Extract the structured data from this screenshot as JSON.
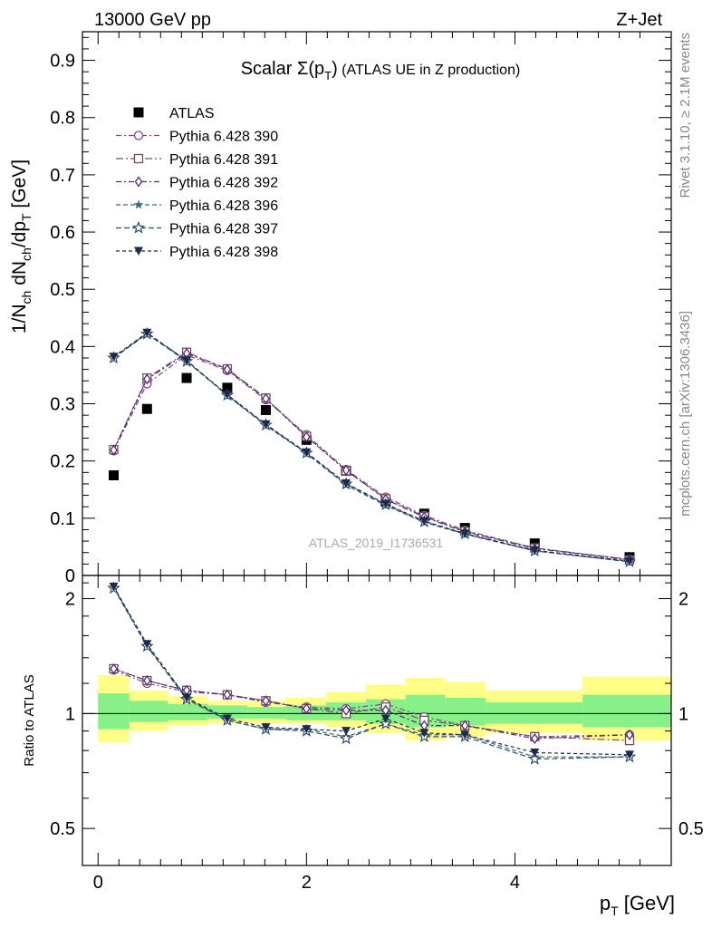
{
  "header": {
    "energy": "13000 GeV pp",
    "process": "Z+Jet"
  },
  "side": {
    "rivet": "Rivet 3.1.10, ≥ 2.1M events",
    "mcplots": "mcplots.cern.ch [arXiv:1306.3436]"
  },
  "watermark": "ATLAS_2019_I1736531",
  "chart_data": [
    {
      "type": "scatter",
      "title": "Scalar Σ(p_T) (ATLAS UE in Z production)",
      "title_main": "Scalar ",
      "title_sigma": "Σ(p",
      "title_sub": "T",
      "title_close": ")",
      "title_rest": " (ATLAS UE in Z production)",
      "ylabel": "1/N_ch dN_ch/dp_T [GeV]",
      "ylim": [
        0,
        0.95
      ],
      "xlim": [
        -0.15,
        5.5
      ],
      "yticks": [
        "0",
        "0.1",
        "0.2",
        "0.3",
        "0.4",
        "0.5",
        "0.6",
        "0.7",
        "0.8",
        "0.9"
      ],
      "ytick_values": [
        0,
        0.1,
        0.2,
        0.3,
        0.4,
        0.5,
        0.6,
        0.7,
        0.8,
        0.9
      ],
      "x": [
        0.15,
        0.47,
        0.85,
        1.24,
        1.61,
        2.0,
        2.38,
        2.76,
        3.13,
        3.52,
        4.19,
        5.1
      ],
      "series": [
        {
          "name": "ATLAS",
          "marker": "square",
          "color": "#000000",
          "values": [
            0.175,
            0.291,
            0.345,
            0.328,
            0.289,
            0.237,
            0.183,
            0.129,
            0.108,
            0.083,
            0.056,
            0.032
          ]
        },
        {
          "name": "Pythia 6.428 390",
          "marker": "circle",
          "color": "#7b4a8c",
          "values": [
            0.218,
            0.335,
            0.385,
            0.358,
            0.307,
            0.246,
            0.185,
            0.137,
            0.105,
            0.079,
            0.048,
            0.028
          ]
        },
        {
          "name": "Pythia 6.428 391",
          "marker": "square-open",
          "color": "#7b4b5c",
          "values": [
            0.22,
            0.345,
            0.39,
            0.361,
            0.31,
            0.243,
            0.183,
            0.134,
            0.103,
            0.077,
            0.048,
            0.027
          ]
        },
        {
          "name": "Pythia 6.428 392",
          "marker": "diamond",
          "color": "#4b2d7a",
          "values": [
            0.219,
            0.343,
            0.388,
            0.36,
            0.309,
            0.242,
            0.184,
            0.133,
            0.102,
            0.076,
            0.047,
            0.028
          ]
        },
        {
          "name": "Pythia 6.428 396",
          "marker": "star",
          "color": "#3d6b7a",
          "values": [
            0.381,
            0.423,
            0.376,
            0.314,
            0.262,
            0.213,
            0.158,
            0.122,
            0.093,
            0.072,
            0.043,
            0.024
          ]
        },
        {
          "name": "Pythia 6.428 397",
          "marker": "star-open",
          "color": "#2e4e6b",
          "values": [
            0.38,
            0.422,
            0.374,
            0.315,
            0.263,
            0.214,
            0.16,
            0.124,
            0.094,
            0.073,
            0.043,
            0.024
          ]
        },
        {
          "name": "Pythia 6.428 398",
          "marker": "triangle-down",
          "color": "#1c2a4d",
          "values": [
            0.382,
            0.424,
            0.375,
            0.316,
            0.264,
            0.215,
            0.161,
            0.125,
            0.095,
            0.073,
            0.044,
            0.025
          ]
        }
      ]
    },
    {
      "type": "scatter",
      "title": "Ratio to ATLAS",
      "ylabel": "Ratio to ATLAS",
      "xlabel": "p_T [GeV]",
      "xlabel_main": "p",
      "xlabel_sub": "T",
      "xlabel_unit": " [GeV]",
      "yscale": "log",
      "ylim": [
        0.4,
        2.3
      ],
      "xlim": [
        -0.15,
        5.5
      ],
      "yticks": [
        "0.5",
        "1",
        "2"
      ],
      "ytick_values": [
        0.5,
        1,
        2
      ],
      "xticks": [
        "0",
        "2",
        "4"
      ],
      "xtick_values": [
        0,
        2,
        4
      ],
      "bands": [
        {
          "x0": 0.0,
          "x1": 0.3,
          "yellow": [
            0.84,
            1.26
          ],
          "green": [
            0.91,
            1.13
          ]
        },
        {
          "x0": 0.3,
          "x1": 0.67,
          "yellow": [
            0.9,
            1.15
          ],
          "green": [
            0.95,
            1.08
          ]
        },
        {
          "x0": 0.67,
          "x1": 1.05,
          "yellow": [
            0.93,
            1.11
          ],
          "green": [
            0.96,
            1.06
          ]
        },
        {
          "x0": 1.05,
          "x1": 1.43,
          "yellow": [
            0.94,
            1.08
          ],
          "green": [
            0.97,
            1.05
          ]
        },
        {
          "x0": 1.43,
          "x1": 1.8,
          "yellow": [
            0.94,
            1.08
          ],
          "green": [
            0.97,
            1.04
          ]
        },
        {
          "x0": 1.8,
          "x1": 2.19,
          "yellow": [
            0.94,
            1.1
          ],
          "green": [
            0.96,
            1.05
          ]
        },
        {
          "x0": 2.19,
          "x1": 2.57,
          "yellow": [
            0.92,
            1.14
          ],
          "green": [
            0.96,
            1.07
          ]
        },
        {
          "x0": 2.57,
          "x1": 2.95,
          "yellow": [
            0.89,
            1.19
          ],
          "green": [
            0.94,
            1.09
          ]
        },
        {
          "x0": 2.95,
          "x1": 3.33,
          "yellow": [
            0.85,
            1.24
          ],
          "green": [
            0.92,
            1.12
          ]
        },
        {
          "x0": 3.33,
          "x1": 3.72,
          "yellow": [
            0.87,
            1.21
          ],
          "green": [
            0.93,
            1.1
          ]
        },
        {
          "x0": 3.72,
          "x1": 4.65,
          "yellow": [
            0.89,
            1.15
          ],
          "green": [
            0.94,
            1.07
          ]
        },
        {
          "x0": 4.65,
          "x1": 5.5,
          "yellow": [
            0.85,
            1.25
          ],
          "green": [
            0.92,
            1.12
          ]
        }
      ],
      "x": [
        0.15,
        0.47,
        0.85,
        1.24,
        1.61,
        2.0,
        2.38,
        2.76,
        3.13,
        3.52,
        4.19,
        5.1
      ],
      "series": [
        {
          "name": "Pythia 6.428 390",
          "marker": "circle",
          "color": "#7b4a8c",
          "values": [
            1.3,
            1.2,
            1.14,
            1.12,
            1.07,
            1.04,
            1.03,
            1.06,
            0.98,
            0.93,
            0.87,
            0.88
          ]
        },
        {
          "name": "Pythia 6.428 391",
          "marker": "square-open",
          "color": "#7b4b5c",
          "values": [
            1.31,
            1.22,
            1.15,
            1.12,
            1.08,
            1.03,
            1.0,
            1.04,
            0.96,
            0.93,
            0.87,
            0.85
          ]
        },
        {
          "name": "Pythia 6.428 392",
          "marker": "diamond",
          "color": "#4b2d7a",
          "values": [
            1.31,
            1.22,
            1.15,
            1.12,
            1.08,
            1.03,
            1.02,
            1.02,
            0.93,
            0.93,
            0.86,
            0.88
          ]
        },
        {
          "name": "Pythia 6.428 396",
          "marker": "star",
          "color": "#3d6b7a",
          "values": [
            2.14,
            1.51,
            1.1,
            0.96,
            0.91,
            0.91,
            0.87,
            0.94,
            0.88,
            0.88,
            0.77,
            0.77
          ]
        },
        {
          "name": "Pythia 6.428 397",
          "marker": "star-open",
          "color": "#2e4e6b",
          "values": [
            2.13,
            1.5,
            1.09,
            0.96,
            0.91,
            0.9,
            0.86,
            0.94,
            0.87,
            0.87,
            0.76,
            0.77
          ]
        },
        {
          "name": "Pythia 6.428 398",
          "marker": "triangle-down",
          "color": "#1c2a4d",
          "values": [
            2.15,
            1.52,
            1.1,
            0.97,
            0.92,
            0.91,
            0.9,
            0.97,
            0.89,
            0.88,
            0.79,
            0.78
          ]
        }
      ]
    }
  ]
}
